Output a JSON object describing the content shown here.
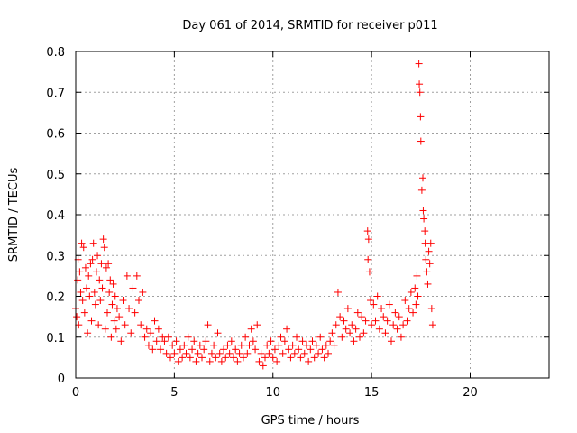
{
  "chart_data": {
    "type": "scatter",
    "title": "Day 061 of 2014, SRMTID for receiver p011",
    "xlabel": "GPS time / hours",
    "ylabel": "SRMTID / TECUs",
    "xlim": [
      0,
      24
    ],
    "ylim": [
      0,
      0.8
    ],
    "xticks": [
      0,
      5,
      10,
      15,
      20
    ],
    "yticks": [
      0,
      0.1,
      0.2,
      0.3,
      0.4,
      0.5,
      0.6,
      0.7,
      0.8
    ],
    "xtick_labels": [
      "0",
      "5",
      "10",
      "15",
      "20"
    ],
    "ytick_labels": [
      "0",
      "0.1",
      "0.2",
      "0.3",
      "0.4",
      "0.5",
      "0.6",
      "0.7",
      "0.8"
    ],
    "grid": true,
    "marker": "+",
    "color": "#ff0000",
    "series": [
      {
        "name": "SRMTID",
        "points": [
          [
            0.0,
            0.17
          ],
          [
            0.05,
            0.15
          ],
          [
            0.1,
            0.24
          ],
          [
            0.12,
            0.29
          ],
          [
            0.15,
            0.13
          ],
          [
            0.2,
            0.26
          ],
          [
            0.25,
            0.21
          ],
          [
            0.3,
            0.33
          ],
          [
            0.35,
            0.19
          ],
          [
            0.4,
            0.32
          ],
          [
            0.45,
            0.16
          ],
          [
            0.5,
            0.27
          ],
          [
            0.55,
            0.22
          ],
          [
            0.6,
            0.11
          ],
          [
            0.65,
            0.25
          ],
          [
            0.7,
            0.2
          ],
          [
            0.75,
            0.28
          ],
          [
            0.8,
            0.14
          ],
          [
            0.85,
            0.29
          ],
          [
            0.9,
            0.33
          ],
          [
            0.95,
            0.21
          ],
          [
            1.0,
            0.18
          ],
          [
            1.05,
            0.26
          ],
          [
            1.1,
            0.3
          ],
          [
            1.15,
            0.13
          ],
          [
            1.2,
            0.24
          ],
          [
            1.25,
            0.19
          ],
          [
            1.3,
            0.28
          ],
          [
            1.35,
            0.22
          ],
          [
            1.4,
            0.34
          ],
          [
            1.45,
            0.32
          ],
          [
            1.5,
            0.12
          ],
          [
            1.55,
            0.27
          ],
          [
            1.6,
            0.16
          ],
          [
            1.65,
            0.28
          ],
          [
            1.7,
            0.21
          ],
          [
            1.75,
            0.24
          ],
          [
            1.8,
            0.1
          ],
          [
            1.85,
            0.18
          ],
          [
            1.9,
            0.23
          ],
          [
            1.95,
            0.14
          ],
          [
            2.0,
            0.2
          ],
          [
            2.05,
            0.12
          ],
          [
            2.1,
            0.17
          ],
          [
            2.2,
            0.15
          ],
          [
            2.3,
            0.09
          ],
          [
            2.4,
            0.19
          ],
          [
            2.5,
            0.13
          ],
          [
            2.6,
            0.25
          ],
          [
            2.7,
            0.17
          ],
          [
            2.8,
            0.11
          ],
          [
            2.9,
            0.22
          ],
          [
            3.0,
            0.16
          ],
          [
            3.1,
            0.25
          ],
          [
            3.2,
            0.19
          ],
          [
            3.3,
            0.13
          ],
          [
            3.4,
            0.21
          ],
          [
            3.5,
            0.1
          ],
          [
            3.6,
            0.12
          ],
          [
            3.7,
            0.08
          ],
          [
            3.8,
            0.11
          ],
          [
            3.9,
            0.07
          ],
          [
            4.0,
            0.14
          ],
          [
            4.1,
            0.09
          ],
          [
            4.2,
            0.12
          ],
          [
            4.3,
            0.07
          ],
          [
            4.4,
            0.1
          ],
          [
            4.5,
            0.09
          ],
          [
            4.6,
            0.06
          ],
          [
            4.7,
            0.1
          ],
          [
            4.8,
            0.05
          ],
          [
            4.9,
            0.08
          ],
          [
            5.0,
            0.06
          ],
          [
            5.1,
            0.09
          ],
          [
            5.2,
            0.04
          ],
          [
            5.3,
            0.07
          ],
          [
            5.4,
            0.05
          ],
          [
            5.5,
            0.08
          ],
          [
            5.6,
            0.06
          ],
          [
            5.7,
            0.1
          ],
          [
            5.8,
            0.05
          ],
          [
            5.9,
            0.07
          ],
          [
            6.0,
            0.09
          ],
          [
            6.1,
            0.04
          ],
          [
            6.2,
            0.06
          ],
          [
            6.3,
            0.08
          ],
          [
            6.4,
            0.05
          ],
          [
            6.5,
            0.07
          ],
          [
            6.6,
            0.09
          ],
          [
            6.7,
            0.13
          ],
          [
            6.8,
            0.04
          ],
          [
            6.9,
            0.06
          ],
          [
            7.0,
            0.08
          ],
          [
            7.1,
            0.05
          ],
          [
            7.2,
            0.11
          ],
          [
            7.3,
            0.06
          ],
          [
            7.4,
            0.04
          ],
          [
            7.5,
            0.07
          ],
          [
            7.6,
            0.05
          ],
          [
            7.7,
            0.08
          ],
          [
            7.8,
            0.06
          ],
          [
            7.9,
            0.09
          ],
          [
            8.0,
            0.05
          ],
          [
            8.1,
            0.07
          ],
          [
            8.2,
            0.04
          ],
          [
            8.3,
            0.06
          ],
          [
            8.4,
            0.08
          ],
          [
            8.5,
            0.05
          ],
          [
            8.6,
            0.1
          ],
          [
            8.7,
            0.06
          ],
          [
            8.8,
            0.08
          ],
          [
            8.9,
            0.12
          ],
          [
            9.0,
            0.09
          ],
          [
            9.1,
            0.07
          ],
          [
            9.2,
            0.13
          ],
          [
            9.3,
            0.04
          ],
          [
            9.4,
            0.06
          ],
          [
            9.5,
            0.03
          ],
          [
            9.6,
            0.05
          ],
          [
            9.7,
            0.08
          ],
          [
            9.8,
            0.06
          ],
          [
            9.9,
            0.09
          ],
          [
            10.0,
            0.05
          ],
          [
            10.1,
            0.07
          ],
          [
            10.2,
            0.04
          ],
          [
            10.3,
            0.08
          ],
          [
            10.4,
            0.1
          ],
          [
            10.5,
            0.06
          ],
          [
            10.6,
            0.09
          ],
          [
            10.7,
            0.12
          ],
          [
            10.8,
            0.07
          ],
          [
            10.9,
            0.05
          ],
          [
            11.0,
            0.08
          ],
          [
            11.1,
            0.06
          ],
          [
            11.2,
            0.1
          ],
          [
            11.3,
            0.07
          ],
          [
            11.4,
            0.05
          ],
          [
            11.5,
            0.09
          ],
          [
            11.6,
            0.06
          ],
          [
            11.7,
            0.08
          ],
          [
            11.8,
            0.04
          ],
          [
            11.9,
            0.07
          ],
          [
            12.0,
            0.09
          ],
          [
            12.1,
            0.05
          ],
          [
            12.2,
            0.08
          ],
          [
            12.3,
            0.06
          ],
          [
            12.4,
            0.1
          ],
          [
            12.5,
            0.07
          ],
          [
            12.6,
            0.05
          ],
          [
            12.7,
            0.08
          ],
          [
            12.8,
            0.06
          ],
          [
            12.9,
            0.09
          ],
          [
            13.0,
            0.11
          ],
          [
            13.1,
            0.08
          ],
          [
            13.2,
            0.13
          ],
          [
            13.3,
            0.21
          ],
          [
            13.4,
            0.15
          ],
          [
            13.5,
            0.1
          ],
          [
            13.6,
            0.14
          ],
          [
            13.7,
            0.12
          ],
          [
            13.8,
            0.17
          ],
          [
            13.9,
            0.11
          ],
          [
            14.0,
            0.13
          ],
          [
            14.1,
            0.09
          ],
          [
            14.2,
            0.12
          ],
          [
            14.3,
            0.16
          ],
          [
            14.4,
            0.1
          ],
          [
            14.5,
            0.15
          ],
          [
            14.6,
            0.11
          ],
          [
            14.7,
            0.14
          ],
          [
            14.8,
            0.36
          ],
          [
            14.82,
            0.29
          ],
          [
            14.85,
            0.34
          ],
          [
            14.9,
            0.26
          ],
          [
            14.95,
            0.19
          ],
          [
            15.0,
            0.13
          ],
          [
            15.1,
            0.18
          ],
          [
            15.2,
            0.14
          ],
          [
            15.3,
            0.2
          ],
          [
            15.4,
            0.12
          ],
          [
            15.5,
            0.17
          ],
          [
            15.6,
            0.15
          ],
          [
            15.7,
            0.11
          ],
          [
            15.8,
            0.14
          ],
          [
            15.9,
            0.18
          ],
          [
            16.0,
            0.09
          ],
          [
            16.1,
            0.13
          ],
          [
            16.2,
            0.16
          ],
          [
            16.3,
            0.12
          ],
          [
            16.4,
            0.15
          ],
          [
            16.5,
            0.1
          ],
          [
            16.6,
            0.13
          ],
          [
            16.7,
            0.19
          ],
          [
            16.8,
            0.14
          ],
          [
            16.9,
            0.17
          ],
          [
            17.0,
            0.21
          ],
          [
            17.1,
            0.16
          ],
          [
            17.2,
            0.22
          ],
          [
            17.25,
            0.18
          ],
          [
            17.3,
            0.25
          ],
          [
            17.35,
            0.2
          ],
          [
            17.4,
            0.77
          ],
          [
            17.42,
            0.72
          ],
          [
            17.45,
            0.7
          ],
          [
            17.48,
            0.64
          ],
          [
            17.5,
            0.58
          ],
          [
            17.55,
            0.46
          ],
          [
            17.6,
            0.49
          ],
          [
            17.62,
            0.41
          ],
          [
            17.65,
            0.39
          ],
          [
            17.7,
            0.36
          ],
          [
            17.72,
            0.33
          ],
          [
            17.75,
            0.29
          ],
          [
            17.8,
            0.26
          ],
          [
            17.85,
            0.23
          ],
          [
            17.9,
            0.31
          ],
          [
            17.95,
            0.28
          ],
          [
            18.0,
            0.33
          ],
          [
            18.05,
            0.17
          ],
          [
            18.1,
            0.13
          ]
        ]
      }
    ]
  }
}
